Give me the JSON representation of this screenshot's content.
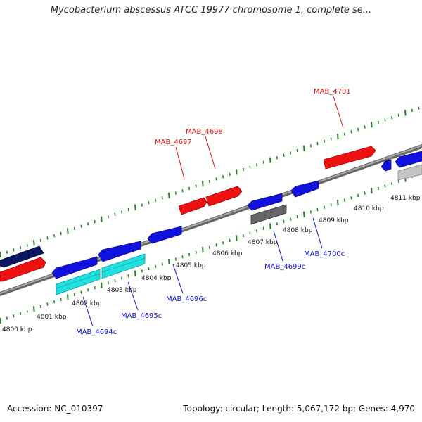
{
  "title": "Mycobacterium abscessus ATCC 19977 chromosome 1, complete se...",
  "footer": {
    "accession": "Accession: NC_010397",
    "summary": "Topology: circular; Length: 5,067,172 bp; Genes: 4,970"
  },
  "colors": {
    "forward_gene": "#ee1111",
    "reverse_gene": "#1111dd",
    "cds_cyan": "#22e0e0",
    "navy_gene": "#0a1660",
    "gray_gene": "#666666",
    "light_gray_gene": "#c4c4c4",
    "backbone": "#888888",
    "ticks": "#1a8a1a",
    "forward_label": "#dd1111",
    "reverse_label": "#1111cc"
  },
  "scale": {
    "unit": "kbp",
    "labels": [
      "4800 kbp",
      "4801 kbp",
      "4802 kbp",
      "4803 kbp",
      "4804 kbp",
      "4805 kbp",
      "4806 kbp",
      "4807 kbp",
      "4808 kbp",
      "4809 kbp",
      "4810 kbp",
      "4811 kbp"
    ]
  },
  "genes_forward_labeled": [
    {
      "label": "MAB_4697"
    },
    {
      "label": "MAB_4698"
    },
    {
      "label": "MAB_4701"
    }
  ],
  "genes_reverse_labeled": [
    {
      "label": "MAB_4694c"
    },
    {
      "label": "MAB_4695c"
    },
    {
      "label": "MAB_4696c"
    },
    {
      "label": "MAB_4699c"
    },
    {
      "label": "MAB_4700c"
    }
  ]
}
